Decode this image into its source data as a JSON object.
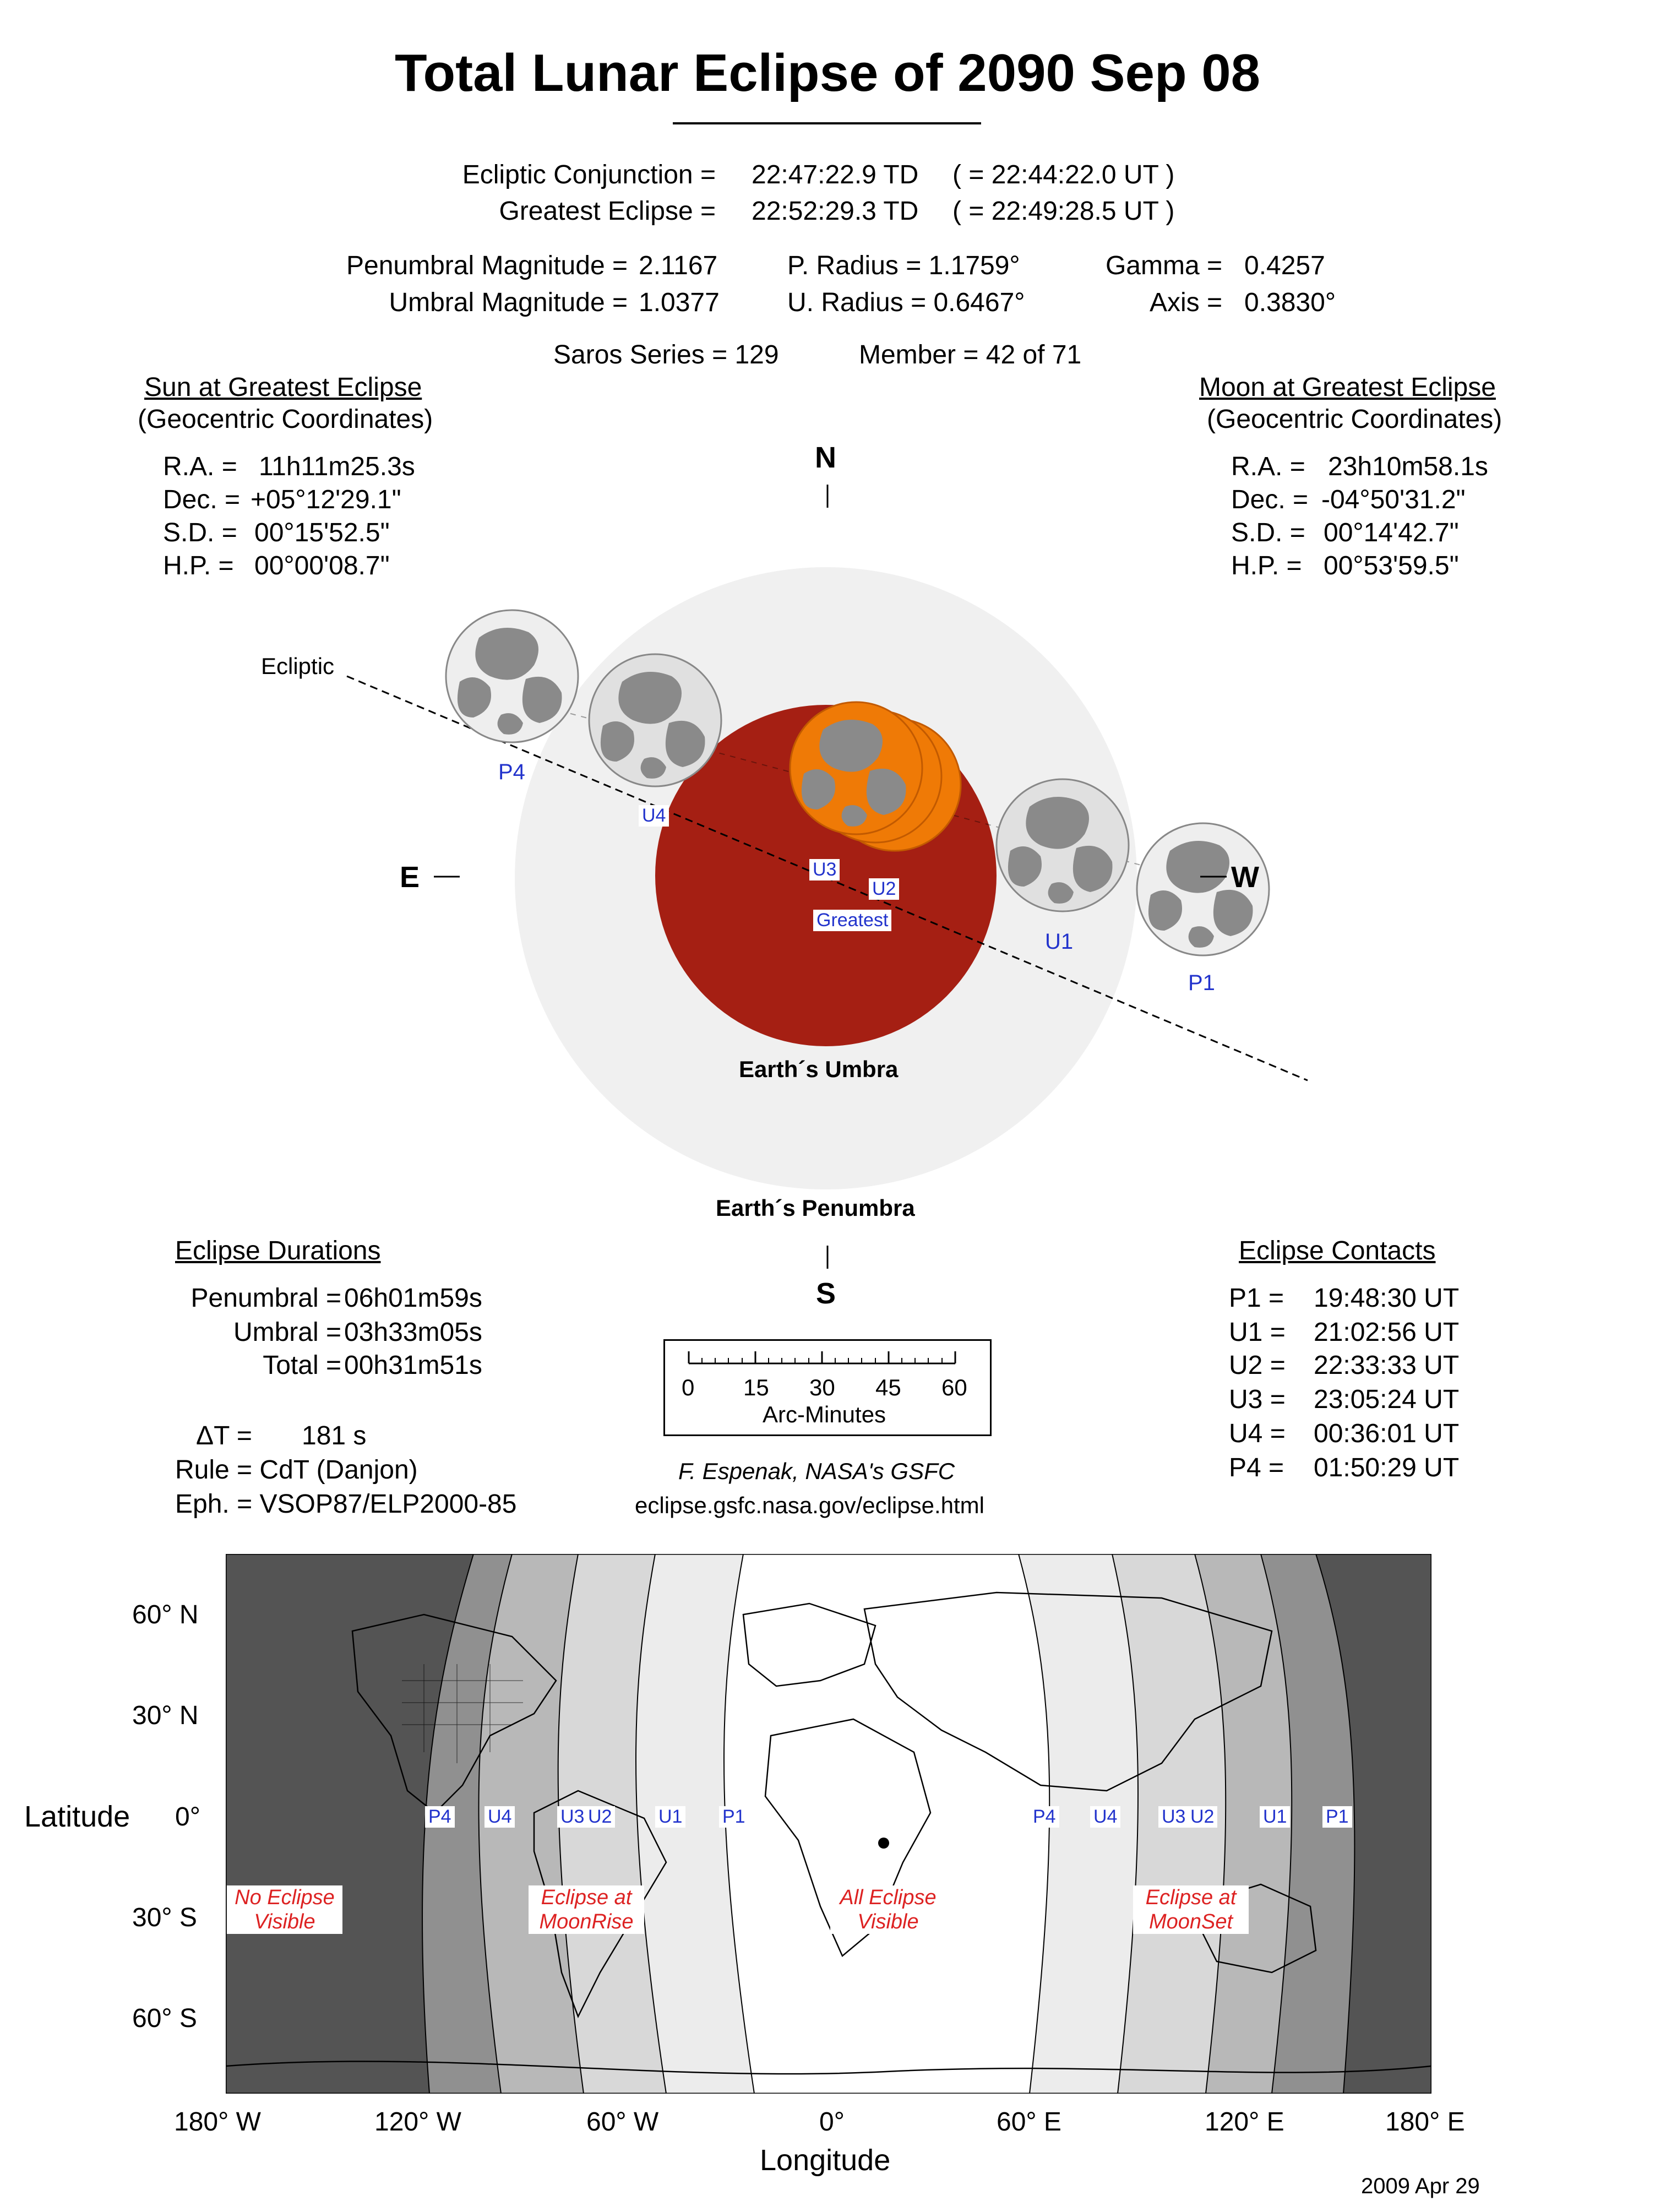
{
  "title": "Total Lunar Eclipse of  2090 Sep 08",
  "conjunction": {
    "label": "Ecliptic Conjunction =",
    "td": "22:47:22.9 TD",
    "ut": "( = 22:44:22.0 UT )"
  },
  "greatest": {
    "label": "Greatest Eclipse =",
    "td": "22:52:29.3 TD",
    "ut": "( = 22:49:28.5 UT )"
  },
  "magnitudes": {
    "penumbral_label": "Penumbral Magnitude =",
    "penumbral_value": "2.1167",
    "umbral_label": "Umbral Magnitude =",
    "umbral_value": "1.0377",
    "p_radius": "P. Radius = 1.1759°",
    "u_radius": "U. Radius = 0.6467°",
    "gamma_label": "Gamma =",
    "gamma_value": "0.4257",
    "axis_label": "Axis =",
    "axis_value": "0.3830°"
  },
  "saros": {
    "series": "Saros Series = 129",
    "member": "Member = 42 of 71"
  },
  "sun": {
    "heading": "Sun at Greatest Eclipse",
    "subheading": "(Geocentric Coordinates)",
    "rows": [
      {
        "label": "R.A. =",
        "value": "11h11m25.3s"
      },
      {
        "label": "Dec. =",
        "value": "+05°12'29.1\""
      },
      {
        "label": "S.D. =",
        "value": "00°15'52.5\""
      },
      {
        "label": "H.P. =",
        "value": "00°00'08.7\""
      }
    ]
  },
  "moon": {
    "heading": "Moon at Greatest Eclipse",
    "subheading": "(Geocentric Coordinates)",
    "rows": [
      {
        "label": "R.A. =",
        "value": "23h10m58.1s"
      },
      {
        "label": "Dec. =",
        "value": "-04°50'31.2\""
      },
      {
        "label": "S.D. =",
        "value": "00°14'42.7\""
      },
      {
        "label": "H.P. =",
        "value": "00°53'59.5\""
      }
    ]
  },
  "diagram": {
    "north": "N",
    "south": "S",
    "east": "E",
    "west": "W",
    "ecliptic": "Ecliptic",
    "umbra_label": "Earth´s Umbra",
    "penumbra_label": "Earth´s Penumbra",
    "contacts": {
      "p1": "P1",
      "u1": "U1",
      "u2": "U2",
      "u3": "U3",
      "u4": "U4",
      "p4": "P4",
      "greatest": "Greatest"
    },
    "colors": {
      "penumbra": "#f0f0f0",
      "umbra": "#a51f13",
      "moon_eclipsed": "#ef7a06",
      "moon_normal": "#e6e6e6",
      "maria": "#8a8a8a"
    }
  },
  "durations": {
    "heading": "Eclipse Durations",
    "rows": [
      {
        "label": "Penumbral =",
        "value": "06h01m59s"
      },
      {
        "label": "Umbral =",
        "value": "03h33m05s"
      },
      {
        "label": "Total =",
        "value": "00h31m51s"
      }
    ],
    "delta_t_label": "ΔT =",
    "delta_t_value": "181 s",
    "rule": "Rule = CdT (Danjon)",
    "eph": "Eph. = VSOP87/ELP2000-85"
  },
  "scale": {
    "ticks": [
      "0",
      "15",
      "30",
      "45",
      "60"
    ],
    "unit": "Arc-Minutes"
  },
  "credit": {
    "author": "F. Espenak, NASA's GSFC",
    "url": "eclipse.gsfc.nasa.gov/eclipse.html"
  },
  "contacts": {
    "heading": "Eclipse Contacts",
    "rows": [
      {
        "label": "P1 =",
        "value": "19:48:30 UT"
      },
      {
        "label": "U1 =",
        "value": "21:02:56 UT"
      },
      {
        "label": "U2 =",
        "value": "22:33:33 UT"
      },
      {
        "label": "U3 =",
        "value": "23:05:24 UT"
      },
      {
        "label": "U4 =",
        "value": "00:36:01 UT"
      },
      {
        "label": "P4 =",
        "value": "01:50:29 UT"
      }
    ]
  },
  "map": {
    "lat_ticks": [
      "60° N",
      "30° N",
      "0°",
      "30° S",
      "60° S"
    ],
    "lon_ticks": [
      "180° W",
      "120° W",
      "60° W",
      "0°",
      "60° E",
      "120° E",
      "180° E"
    ],
    "ylabel": "Latitude",
    "xlabel": "Longitude",
    "west_labels": [
      "P4",
      "U4",
      "U3",
      "U2",
      "U1",
      "P1"
    ],
    "east_labels": [
      "P4",
      "U4",
      "U3",
      "U2",
      "U1",
      "P1"
    ],
    "zones": {
      "no_eclipse": [
        "No Eclipse",
        "Visible"
      ],
      "moonrise": [
        "Eclipse at",
        "MoonRise"
      ],
      "all": [
        "All Eclipse",
        "Visible"
      ],
      "moonset": [
        "Eclipse at",
        "MoonSet"
      ]
    }
  },
  "date": "2009 Apr 29"
}
